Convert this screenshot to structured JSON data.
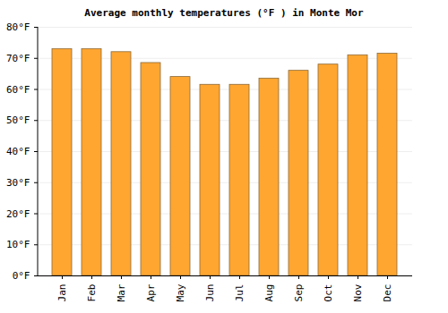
{
  "chart_data": {
    "type": "bar",
    "title": "Average monthly temperatures (°F ) in Monte Mor",
    "categories": [
      "Jan",
      "Feb",
      "Mar",
      "Apr",
      "May",
      "Jun",
      "Jul",
      "Aug",
      "Sep",
      "Oct",
      "Nov",
      "Dec"
    ],
    "values": [
      73,
      73,
      72,
      68.5,
      64,
      61.5,
      61.5,
      63.5,
      66,
      68,
      71,
      71.5
    ],
    "color": "#ffa630",
    "ylim": [
      0,
      80
    ],
    "yticks": [
      {
        "value": 0,
        "label": "0°F"
      },
      {
        "value": 10,
        "label": "10°F"
      },
      {
        "value": 20,
        "label": "20°F"
      },
      {
        "value": 30,
        "label": "30°F"
      },
      {
        "value": 40,
        "label": "40°F"
      },
      {
        "value": 50,
        "label": "50°F"
      },
      {
        "value": 60,
        "label": "60°F"
      },
      {
        "value": 70,
        "label": "70°F"
      },
      {
        "value": 80,
        "label": "80°F"
      }
    ],
    "grid": true
  }
}
